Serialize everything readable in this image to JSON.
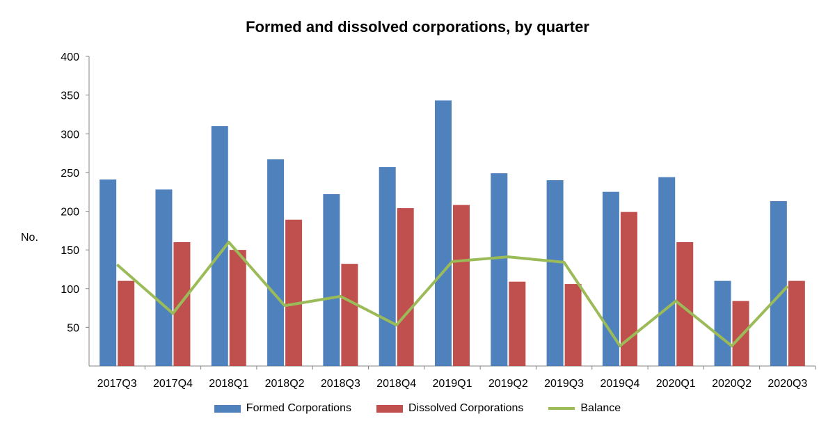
{
  "chart_data": {
    "type": "bar",
    "title": "Formed and dissolved corporations, by quarter",
    "ylabel": "No.",
    "xlabel": "",
    "ylim": [
      0,
      400
    ],
    "yticks": [
      50,
      100,
      150,
      200,
      250,
      300,
      350,
      400
    ],
    "categories": [
      "2017Q3",
      "2017Q4",
      "2018Q1",
      "2018Q2",
      "2018Q3",
      "2018Q4",
      "2019Q1",
      "2019Q2",
      "2019Q3",
      "2019Q4",
      "2020Q1",
      "2020Q2",
      "2020Q3"
    ],
    "series": [
      {
        "name": "Formed Corporations",
        "kind": "bar",
        "color": "#4f81bd",
        "values": [
          241,
          228,
          310,
          267,
          222,
          257,
          343,
          249,
          240,
          225,
          244,
          110,
          213
        ]
      },
      {
        "name": "Dissolved Corporations",
        "kind": "bar",
        "color": "#c0504d",
        "values": [
          110,
          160,
          150,
          189,
          132,
          204,
          208,
          109,
          106,
          199,
          160,
          84,
          110
        ]
      },
      {
        "name": "Balance",
        "kind": "line",
        "color": "#9bbb59",
        "values": [
          131,
          68,
          160,
          78,
          90,
          53,
          135,
          141,
          134,
          26,
          84,
          26,
          103
        ]
      }
    ],
    "legend_position": "bottom",
    "grid": false
  }
}
